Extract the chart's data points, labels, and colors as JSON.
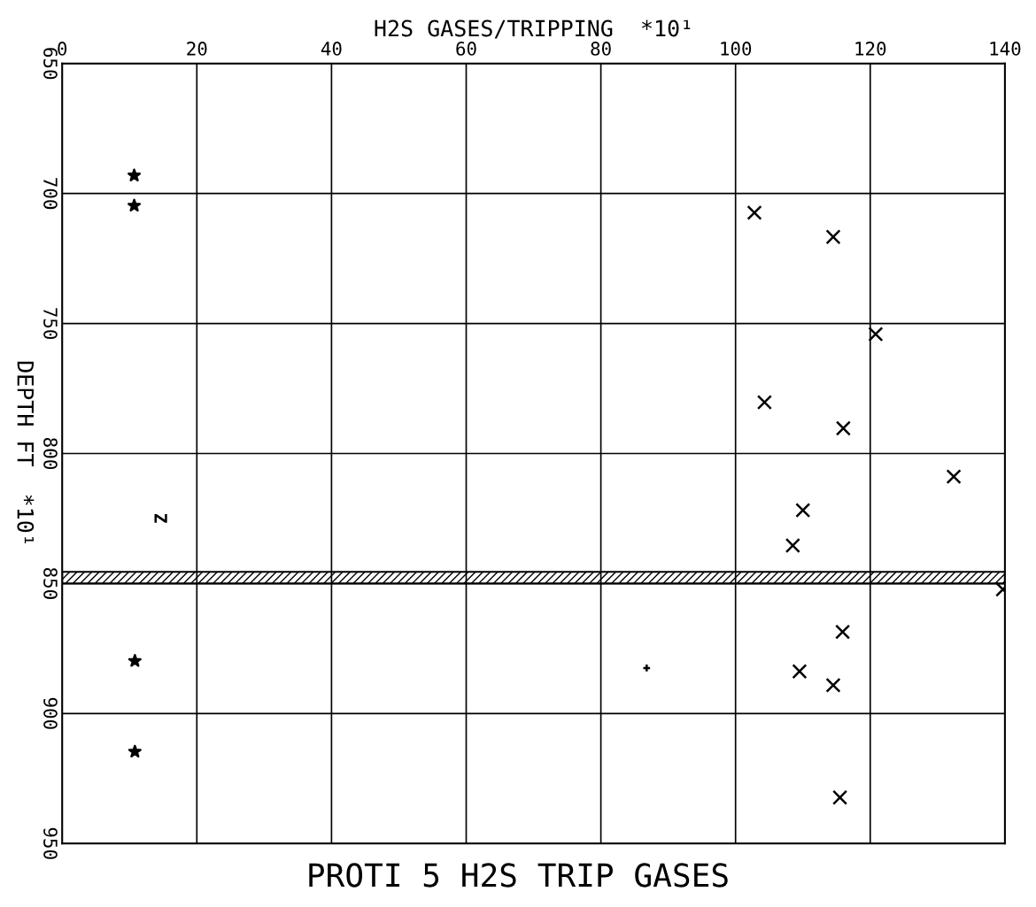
{
  "chart_data": {
    "type": "scatter",
    "title": "PROTI 5 H2S TRIP GASES",
    "xlabel": "H2S GASES/TRIPPING  *10¹",
    "ylabel": "DEPTH FT  *10¹",
    "xlim": [
      0,
      140
    ],
    "xticks": [
      0,
      20,
      40,
      60,
      80,
      100,
      120,
      140
    ],
    "ylim": [
      950,
      650
    ],
    "yticks": [
      650,
      700,
      750,
      800,
      850,
      900,
      950
    ],
    "grid": true,
    "series": [
      {
        "color": "#000000",
        "marker": "star",
        "x": [
          10.7,
          10.7,
          10.8,
          10.8
        ],
        "values": [
          693.1,
          704.7,
          879.8,
          914.7
        ]
      },
      {
        "color": "#000000",
        "marker": "cross",
        "x": [
          102.8,
          114.5,
          120.8,
          104.3,
          116,
          132.4,
          110,
          108.5,
          139.7,
          115.9,
          109.5,
          114.5,
          115.5
        ],
        "values": [
          707.4,
          716.7,
          754.1,
          780.3,
          790.3,
          808.9,
          821.8,
          835.4,
          852.3,
          868.6,
          883.8,
          889.1,
          932.3
        ]
      },
      {
        "color": "#000000",
        "marker": "plus",
        "x": [
          86.8
        ],
        "values": [
          882.5
        ]
      }
    ],
    "bands": [
      {
        "axis": "y",
        "from": 845.5,
        "to": 850,
        "color": "#000000"
      }
    ],
    "annotations": [
      "Z"
    ]
  }
}
